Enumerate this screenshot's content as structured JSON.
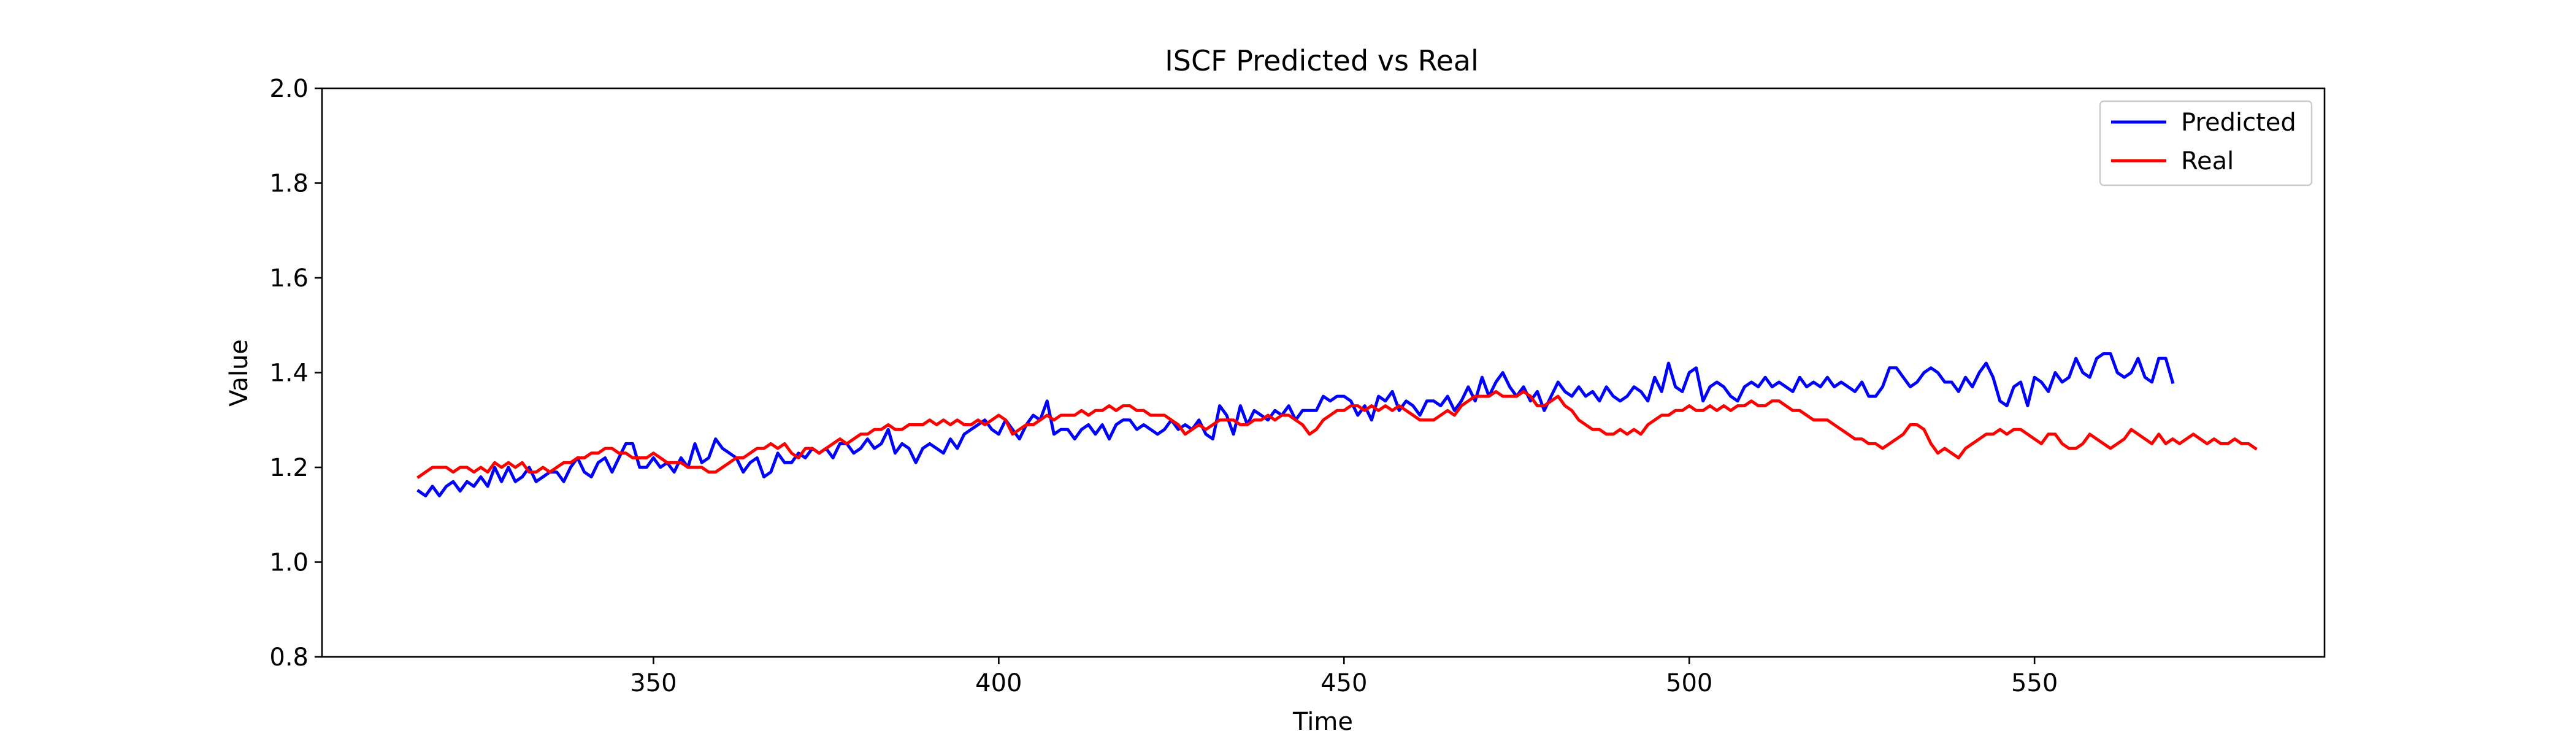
{
  "chart_data": {
    "type": "line",
    "title": "ISCF Predicted vs Real",
    "xlabel": "Time",
    "ylabel": "Value",
    "xlim": [
      302,
      592
    ],
    "ylim": [
      0.8,
      2.0
    ],
    "x_ticks": [
      350,
      400,
      450,
      500,
      550
    ],
    "y_ticks": [
      0.8,
      1.0,
      1.2,
      1.4,
      1.6,
      1.8,
      2.0
    ],
    "x_tick_labels": [
      "350",
      "400",
      "450",
      "500",
      "550"
    ],
    "y_tick_labels": [
      "0.8",
      "1.0",
      "1.2",
      "1.4",
      "1.6",
      "1.8",
      "2.0"
    ],
    "grid": false,
    "legend_position": "top-right",
    "x_start": 316,
    "x_step": 1,
    "series": [
      {
        "name": "Predicted",
        "color": "#0000ff",
        "values": [
          1.15,
          1.14,
          1.16,
          1.14,
          1.16,
          1.17,
          1.15,
          1.17,
          1.16,
          1.18,
          1.16,
          1.2,
          1.17,
          1.2,
          1.17,
          1.18,
          1.2,
          1.17,
          1.18,
          1.19,
          1.19,
          1.17,
          1.2,
          1.22,
          1.19,
          1.18,
          1.21,
          1.22,
          1.19,
          1.22,
          1.25,
          1.25,
          1.2,
          1.2,
          1.22,
          1.2,
          1.21,
          1.19,
          1.22,
          1.2,
          1.25,
          1.21,
          1.22,
          1.26,
          1.24,
          1.23,
          1.22,
          1.19,
          1.21,
          1.22,
          1.18,
          1.19,
          1.23,
          1.21,
          1.21,
          1.23,
          1.22,
          1.24,
          1.23,
          1.24,
          1.22,
          1.25,
          1.25,
          1.23,
          1.24,
          1.26,
          1.24,
          1.25,
          1.28,
          1.23,
          1.25,
          1.24,
          1.21,
          1.24,
          1.25,
          1.24,
          1.23,
          1.26,
          1.24,
          1.27,
          1.28,
          1.29,
          1.3,
          1.28,
          1.27,
          1.3,
          1.28,
          1.26,
          1.29,
          1.31,
          1.3,
          1.34,
          1.27,
          1.28,
          1.28,
          1.26,
          1.28,
          1.29,
          1.27,
          1.29,
          1.26,
          1.29,
          1.3,
          1.3,
          1.28,
          1.29,
          1.28,
          1.27,
          1.28,
          1.3,
          1.28,
          1.29,
          1.28,
          1.3,
          1.27,
          1.26,
          1.33,
          1.31,
          1.27,
          1.33,
          1.29,
          1.32,
          1.31,
          1.3,
          1.32,
          1.31,
          1.33,
          1.3,
          1.32,
          1.32,
          1.32,
          1.35,
          1.34,
          1.35,
          1.35,
          1.34,
          1.31,
          1.33,
          1.3,
          1.35,
          1.34,
          1.36,
          1.32,
          1.34,
          1.33,
          1.31,
          1.34,
          1.34,
          1.33,
          1.35,
          1.32,
          1.34,
          1.37,
          1.34,
          1.39,
          1.35,
          1.38,
          1.4,
          1.37,
          1.35,
          1.37,
          1.34,
          1.36,
          1.32,
          1.35,
          1.38,
          1.36,
          1.35,
          1.37,
          1.35,
          1.36,
          1.34,
          1.37,
          1.35,
          1.34,
          1.35,
          1.37,
          1.36,
          1.34,
          1.39,
          1.36,
          1.42,
          1.37,
          1.36,
          1.4,
          1.41,
          1.34,
          1.37,
          1.38,
          1.37,
          1.35,
          1.34,
          1.37,
          1.38,
          1.37,
          1.39,
          1.37,
          1.38,
          1.37,
          1.36,
          1.39,
          1.37,
          1.38,
          1.37,
          1.39,
          1.37,
          1.38,
          1.37,
          1.36,
          1.38,
          1.35,
          1.35,
          1.37,
          1.41,
          1.41,
          1.39,
          1.37,
          1.38,
          1.4,
          1.41,
          1.4,
          1.38,
          1.38,
          1.36,
          1.39,
          1.37,
          1.4,
          1.42,
          1.39,
          1.34,
          1.33,
          1.37,
          1.38,
          1.33,
          1.39,
          1.38,
          1.36,
          1.4,
          1.38,
          1.39,
          1.43,
          1.4,
          1.39,
          1.43,
          1.44,
          1.44,
          1.4,
          1.39,
          1.4,
          1.43,
          1.39,
          1.38,
          1.43,
          1.43,
          1.38
        ]
      },
      {
        "name": "Real",
        "color": "#ff0000",
        "values": [
          1.18,
          1.19,
          1.2,
          1.2,
          1.2,
          1.19,
          1.2,
          1.2,
          1.19,
          1.2,
          1.19,
          1.21,
          1.2,
          1.21,
          1.2,
          1.21,
          1.19,
          1.19,
          1.2,
          1.19,
          1.2,
          1.21,
          1.21,
          1.22,
          1.22,
          1.23,
          1.23,
          1.24,
          1.24,
          1.23,
          1.23,
          1.22,
          1.22,
          1.22,
          1.23,
          1.22,
          1.21,
          1.21,
          1.21,
          1.2,
          1.2,
          1.2,
          1.19,
          1.19,
          1.2,
          1.21,
          1.22,
          1.22,
          1.23,
          1.24,
          1.24,
          1.25,
          1.24,
          1.25,
          1.23,
          1.22,
          1.24,
          1.24,
          1.23,
          1.24,
          1.25,
          1.26,
          1.25,
          1.26,
          1.27,
          1.27,
          1.28,
          1.28,
          1.29,
          1.28,
          1.28,
          1.29,
          1.29,
          1.29,
          1.3,
          1.29,
          1.3,
          1.29,
          1.3,
          1.29,
          1.29,
          1.3,
          1.29,
          1.3,
          1.31,
          1.3,
          1.27,
          1.28,
          1.29,
          1.29,
          1.3,
          1.31,
          1.3,
          1.31,
          1.31,
          1.31,
          1.32,
          1.31,
          1.32,
          1.32,
          1.33,
          1.32,
          1.33,
          1.33,
          1.32,
          1.32,
          1.31,
          1.31,
          1.31,
          1.3,
          1.29,
          1.27,
          1.28,
          1.29,
          1.28,
          1.29,
          1.3,
          1.3,
          1.3,
          1.29,
          1.29,
          1.3,
          1.3,
          1.31,
          1.3,
          1.31,
          1.31,
          1.3,
          1.29,
          1.27,
          1.28,
          1.3,
          1.31,
          1.32,
          1.32,
          1.33,
          1.33,
          1.32,
          1.33,
          1.32,
          1.33,
          1.32,
          1.33,
          1.32,
          1.31,
          1.3,
          1.3,
          1.3,
          1.31,
          1.32,
          1.31,
          1.33,
          1.34,
          1.35,
          1.35,
          1.35,
          1.36,
          1.35,
          1.35,
          1.35,
          1.36,
          1.35,
          1.33,
          1.33,
          1.34,
          1.35,
          1.33,
          1.32,
          1.3,
          1.29,
          1.28,
          1.28,
          1.27,
          1.27,
          1.28,
          1.27,
          1.28,
          1.27,
          1.29,
          1.3,
          1.31,
          1.31,
          1.32,
          1.32,
          1.33,
          1.32,
          1.32,
          1.33,
          1.32,
          1.33,
          1.32,
          1.33,
          1.33,
          1.34,
          1.33,
          1.33,
          1.34,
          1.34,
          1.33,
          1.32,
          1.32,
          1.31,
          1.3,
          1.3,
          1.3,
          1.29,
          1.28,
          1.27,
          1.26,
          1.26,
          1.25,
          1.25,
          1.24,
          1.25,
          1.26,
          1.27,
          1.29,
          1.29,
          1.28,
          1.25,
          1.23,
          1.24,
          1.23,
          1.22,
          1.24,
          1.25,
          1.26,
          1.27,
          1.27,
          1.28,
          1.27,
          1.28,
          1.28,
          1.27,
          1.26,
          1.25,
          1.27,
          1.27,
          1.25,
          1.24,
          1.24,
          1.25,
          1.27,
          1.26,
          1.25,
          1.24,
          1.25,
          1.26,
          1.28,
          1.27,
          1.26,
          1.25,
          1.27,
          1.25,
          1.26,
          1.25,
          1.26,
          1.27,
          1.26,
          1.25,
          1.26,
          1.25,
          1.25,
          1.26,
          1.25,
          1.25,
          1.24
        ]
      }
    ]
  }
}
